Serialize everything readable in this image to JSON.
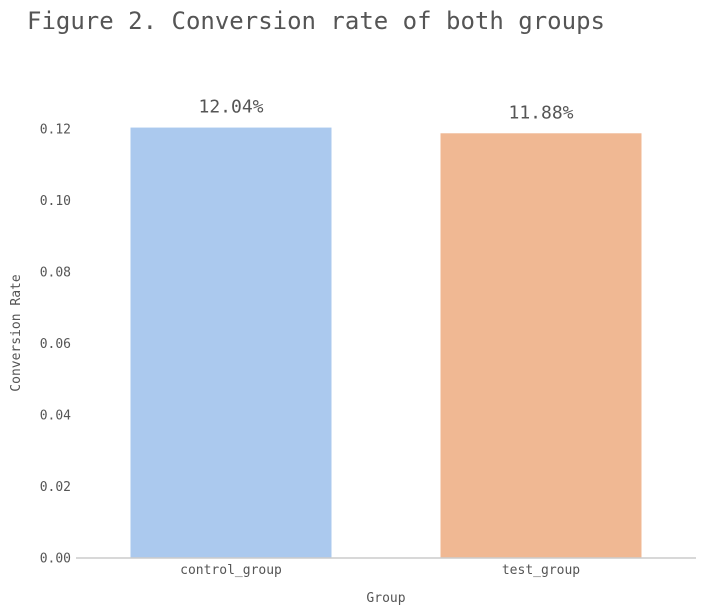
{
  "chart_data": {
    "type": "bar",
    "title": "Figure 2. Conversion rate of both groups",
    "xlabel": "Group",
    "ylabel": "Conversion Rate",
    "categories": [
      "control_group",
      "test_group"
    ],
    "values": [
      0.1204,
      0.1188
    ],
    "data_labels": [
      "12.04%",
      "11.88%"
    ],
    "colors": [
      "#abc9ee",
      "#f0b893"
    ],
    "yticks": [
      "0.00",
      "0.02",
      "0.04",
      "0.06",
      "0.08",
      "0.10",
      "0.12"
    ],
    "ylim": [
      0,
      0.12
    ],
    "grid": false,
    "axis_color": "#cccccc",
    "text_color": "#555555"
  }
}
